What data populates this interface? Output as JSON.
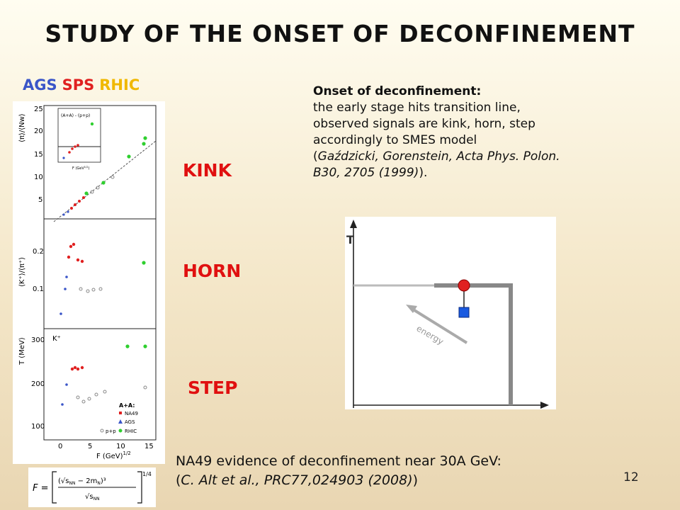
{
  "slide": {
    "title": "STUDY OF THE ONSET OF DECONFINEMENT",
    "page_number": "12"
  },
  "accelerators": {
    "ags": "AGS",
    "sps": "SPS",
    "rhic": "RHIC"
  },
  "signals": {
    "kink": "KINK",
    "horn": "HORN",
    "step": "STEP"
  },
  "description": {
    "heading": "Onset of deconfinement:",
    "line1": "the early stage hits transition line,",
    "line2": "observed signals are kink, horn, step",
    "line3": "accordingly to SMES model",
    "ref_line1": "Gaździcki, Gorenstein, Acta Phys. Polon.",
    "ref_line2": "B30, 2705 (1999)"
  },
  "evidence": {
    "line1": "NA49 evidence of deconfinement near 30A GeV:",
    "ref": "C. Alt et al., PRC77,024903 (2008)"
  },
  "colors": {
    "ags": "#3a55c8",
    "sps": "#e02020",
    "rhic": "#f0b800",
    "signal": "#e01010"
  },
  "plot": {
    "panel1": {
      "ylabel": "⟨π⟩/⟨Nw⟩",
      "yticks": [
        "25",
        "20",
        "15",
        "10",
        "5"
      ],
      "inset_label": "(A+A) - (p+p)",
      "inset_xlabel": "F (GeV",
      "inset_sup": "1/2",
      "inset_x_end": ")"
    },
    "panel2": {
      "ylabel": "⟨K⁺⟩/⟨π⁺⟩",
      "yticks": [
        "0.2",
        "0.1"
      ]
    },
    "panel3": {
      "ylabel": "T (MeV)",
      "yticks": [
        "300",
        "200",
        "100"
      ],
      "k_label": "K⁺",
      "legend_title": "A+A:",
      "legend": [
        "NA49",
        "AGS",
        "RHIC"
      ],
      "pp_label": "p+p",
      "xticks": [
        "0",
        "5",
        "10",
        "15"
      ],
      "xlabel": "F (GeV)",
      "x_sup": "1/2"
    }
  },
  "diagram": {
    "axis_label": "T",
    "arrow_label": "energy"
  },
  "formula": {
    "lhs": "F =",
    "numerator": "(√s",
    "numerator_sub": "NN",
    "numerator_rest": " − 2m",
    "numerator_sub2": "N",
    "numerator_exp": ")³",
    "denominator": "√s",
    "denominator_sub": "NN",
    "power": "1/4"
  }
}
